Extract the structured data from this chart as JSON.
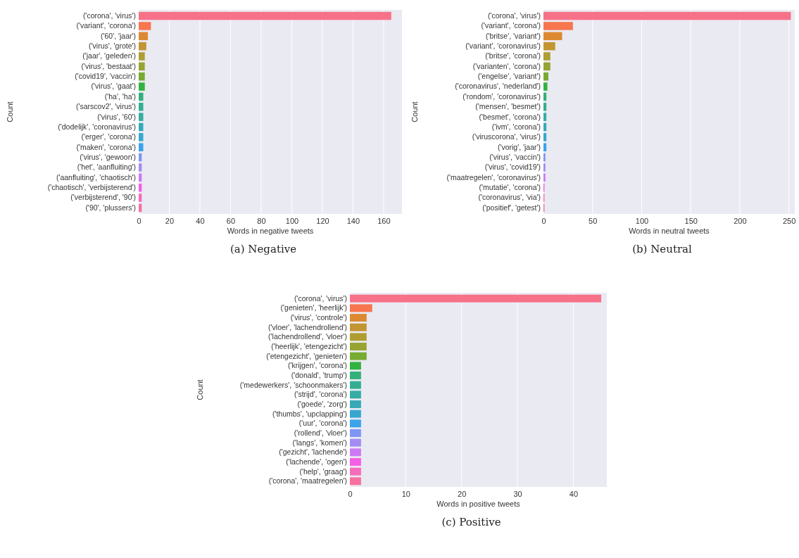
{
  "chart_data": [
    {
      "type": "bar",
      "orientation": "horizontal",
      "xlabel": "Words in negative tweets",
      "ylabel": "Count",
      "grid": "x",
      "annotations": [
        "(a) Negative"
      ],
      "categories": [
        "('corona', 'virus')",
        "('variant', 'corona')",
        "('60', 'jaar')",
        "('virus', 'grote')",
        "('jaar', 'geleden')",
        "('virus', 'bestaat')",
        "('covid19', 'vaccin')",
        "('virus', 'gaat')",
        "('ha', 'ha')",
        "('sarscov2', 'virus')",
        "('virus', '60')",
        "('dodelijk', 'coronavirus')",
        "('erger', 'corona')",
        "('maken', 'corona')",
        "('virus', 'gewoon')",
        "('het', 'aanfluiting')",
        "('aanfluiting', 'chaotisch')",
        "('chaotisch', 'verbijsterend')",
        "('verbijsterend', '90')",
        "('90', 'plussers')"
      ],
      "values": [
        165,
        8,
        6,
        5,
        4,
        4,
        4,
        4,
        3,
        3,
        3,
        3,
        3,
        3,
        2,
        2,
        2,
        2,
        2,
        2
      ],
      "colors": [
        "#f77189",
        "#f7754f",
        "#dc8932",
        "#c39532",
        "#ae9d31",
        "#97a431",
        "#77ab31",
        "#31b33e",
        "#33b07a",
        "#34ae91",
        "#35aca4",
        "#36aab6",
        "#38a7d0",
        "#3ba3ec",
        "#7e97f4",
        "#a48cf4",
        "#cc7af4",
        "#f45fe5",
        "#f66bbc",
        "#f7709f"
      ],
      "xlim": [
        0,
        172
      ],
      "xticks": [
        0,
        20,
        40,
        60,
        80,
        100,
        120,
        140,
        160
      ]
    },
    {
      "type": "bar",
      "orientation": "horizontal",
      "xlabel": "Words in neutral tweets",
      "ylabel": "Count",
      "grid": "x",
      "annotations": [
        "(b) Neutral"
      ],
      "categories": [
        "('corona', 'virus')",
        "('variant', 'corona')",
        "('britse', 'variant')",
        "('variant', 'coronavirus')",
        "('britse', 'corona')",
        "('varianten', 'corona')",
        "('engelse', 'variant')",
        "('coronavirus', 'nederland')",
        "('rondom', 'coronavirus')",
        "('mensen', 'besmet')",
        "('besmet', 'corona')",
        "('ivm', 'corona')",
        "('viruscorona', 'virus')",
        "('vorig', 'jaar')",
        "('virus', 'vaccin')",
        "('virus', 'covid19')",
        "('maatregelen', 'coronavirus')",
        "('mutatie', 'corona')",
        "('coronavirus', 'via')",
        "('positief', 'getest')"
      ],
      "values": [
        252,
        30,
        19,
        12,
        7,
        7,
        5,
        4,
        3,
        3,
        3,
        3,
        3,
        3,
        2,
        2,
        2,
        1,
        1,
        1
      ],
      "colors": [
        "#f77189",
        "#f7754f",
        "#dc8932",
        "#c39532",
        "#ae9d31",
        "#97a431",
        "#77ab31",
        "#31b33e",
        "#33b07a",
        "#34ae91",
        "#35aca4",
        "#36aab6",
        "#38a7d0",
        "#3ba3ec",
        "#7e97f4",
        "#a48cf4",
        "#cc7af4",
        "#f45fe5",
        "#f66bbc",
        "#f7709f"
      ],
      "xlim": [
        0,
        256
      ],
      "xticks": [
        0,
        50,
        100,
        150,
        200,
        250
      ]
    },
    {
      "type": "bar",
      "orientation": "horizontal",
      "xlabel": "Words in positive tweets",
      "ylabel": "Count",
      "grid": "x",
      "annotations": [
        "(c) Positive"
      ],
      "categories": [
        "('corona', 'virus')",
        "('genieten', 'heerlijk')",
        "('virus', 'controle')",
        "('vloer', 'lachendrollend')",
        "('lachendrollend', 'vloer')",
        "('heerlijk', 'etengezicht')",
        "('etengezicht', 'genieten')",
        "('krijgen', 'corona')",
        "('donald', 'trump')",
        "('medewerkers', 'schoonmakers')",
        "('strijd', 'corona')",
        "('goede', 'zorg')",
        "('thumbs', 'upclapping')",
        "('uur', 'corona')",
        "('rollend', 'vloer')",
        "('langs', 'komen')",
        "('gezicht', 'lachende')",
        "('lachende', 'ogen')",
        "('help', 'graag')",
        "('corona', 'maatregelen')"
      ],
      "values": [
        45,
        4,
        3,
        3,
        3,
        3,
        3,
        2,
        2,
        2,
        2,
        2,
        2,
        2,
        2,
        2,
        2,
        2,
        2,
        2
      ],
      "colors": [
        "#f77189",
        "#f7754f",
        "#dc8932",
        "#c39532",
        "#ae9d31",
        "#97a431",
        "#77ab31",
        "#31b33e",
        "#33b07a",
        "#34ae91",
        "#35aca4",
        "#36aab6",
        "#38a7d0",
        "#3ba3ec",
        "#7e97f4",
        "#a48cf4",
        "#cc7af4",
        "#f45fe5",
        "#f66bbc",
        "#f7709f"
      ],
      "xlim": [
        0,
        46
      ],
      "xticks": [
        0,
        10,
        20,
        30,
        40
      ]
    }
  ]
}
